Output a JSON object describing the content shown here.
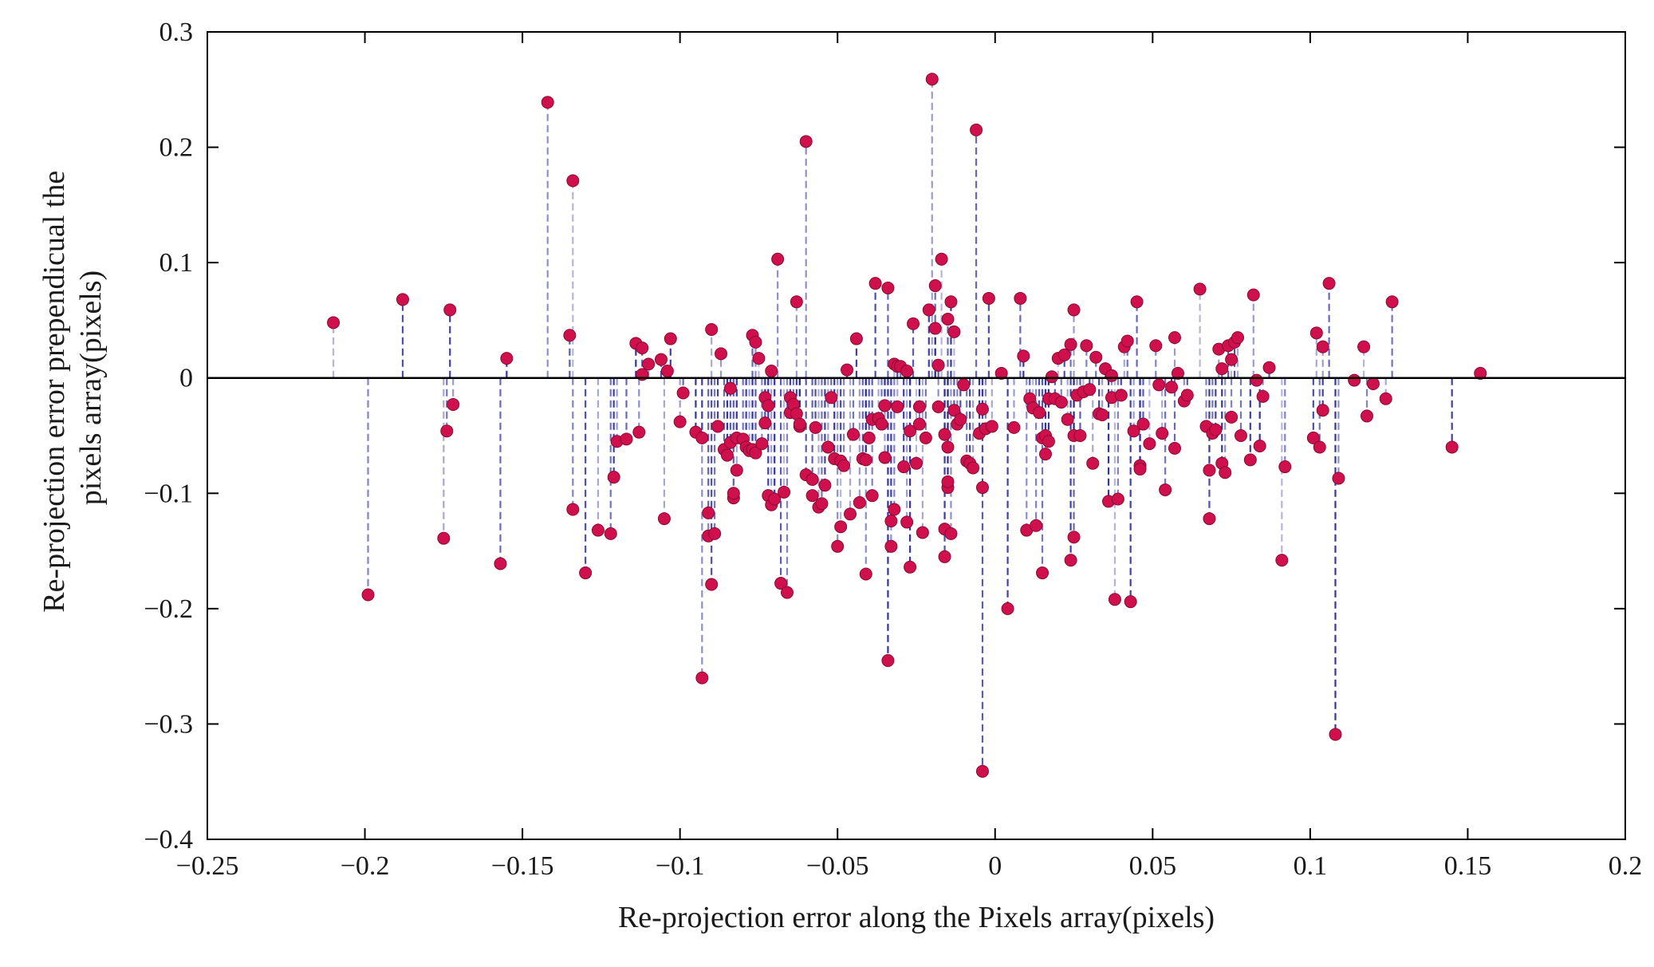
{
  "chart_data": {
    "type": "scatter",
    "style": "stem",
    "title": "",
    "xlabel": "Re-projection error along the Pixels array(pixels)",
    "ylabel": "Re-projection error prependicual the pixels array(pixels)",
    "ylabel_lines": [
      "Re-projection error prependicual the",
      "pixels array(pixels)"
    ],
    "xlim": [
      -0.25,
      0.2
    ],
    "ylim": [
      -0.4,
      0.3
    ],
    "xticks": [
      -0.25,
      -0.2,
      -0.15,
      -0.1,
      -0.05,
      0,
      0.05,
      0.1,
      0.15,
      0.2
    ],
    "yticks": [
      -0.4,
      -0.3,
      -0.2,
      -0.1,
      0,
      0.1,
      0.2,
      0.3
    ],
    "xtick_labels": [
      "−0.25",
      "−0.2",
      "−0.15",
      "−0.1",
      "−0.05",
      "0",
      "0.05",
      "0.1",
      "0.15",
      "0.2"
    ],
    "ytick_labels": [
      "−0.4",
      "−0.3",
      "−0.2",
      "−0.1",
      "0",
      "0.1",
      "0.2",
      "0.3"
    ],
    "grid": false,
    "baseline": 0,
    "colors": {
      "marker": "#d0104c",
      "stem": "#2a2a9a",
      "baseline": "#000000",
      "axis": "#000000"
    },
    "series": [
      {
        "name": "re-projection error",
        "points": [
          [
            -0.21,
            0.048
          ],
          [
            -0.199,
            -0.188
          ],
          [
            -0.188,
            0.068
          ],
          [
            -0.175,
            -0.139
          ],
          [
            -0.174,
            -0.046
          ],
          [
            -0.173,
            0.059
          ],
          [
            -0.172,
            -0.023
          ],
          [
            -0.157,
            -0.161
          ],
          [
            -0.155,
            0.017
          ],
          [
            -0.142,
            0.239
          ],
          [
            -0.135,
            0.037
          ],
          [
            -0.134,
            0.171
          ],
          [
            -0.134,
            -0.114
          ],
          [
            -0.13,
            -0.169
          ],
          [
            -0.126,
            -0.132
          ],
          [
            -0.122,
            -0.135
          ],
          [
            -0.121,
            -0.086
          ],
          [
            -0.12,
            -0.055
          ],
          [
            -0.117,
            -0.053
          ],
          [
            -0.114,
            0.03
          ],
          [
            -0.113,
            -0.047
          ],
          [
            -0.112,
            0.026
          ],
          [
            -0.112,
            0.003
          ],
          [
            -0.11,
            0.012
          ],
          [
            -0.106,
            0.016
          ],
          [
            -0.105,
            -0.122
          ],
          [
            -0.104,
            0.006
          ],
          [
            -0.103,
            0.034
          ],
          [
            -0.1,
            -0.038
          ],
          [
            -0.099,
            -0.013
          ],
          [
            -0.095,
            -0.047
          ],
          [
            -0.093,
            -0.26
          ],
          [
            -0.093,
            -0.052
          ],
          [
            -0.091,
            -0.117
          ],
          [
            -0.091,
            -0.137
          ],
          [
            -0.09,
            -0.179
          ],
          [
            -0.09,
            0.042
          ],
          [
            -0.089,
            -0.135
          ],
          [
            -0.088,
            -0.042
          ],
          [
            -0.087,
            0.021
          ],
          [
            -0.086,
            -0.062
          ],
          [
            -0.085,
            -0.067
          ],
          [
            -0.084,
            -0.009
          ],
          [
            -0.084,
            -0.056
          ],
          [
            -0.083,
            -0.104
          ],
          [
            -0.083,
            -0.1
          ],
          [
            -0.082,
            -0.052
          ],
          [
            -0.082,
            -0.08
          ],
          [
            -0.08,
            -0.053
          ],
          [
            -0.079,
            -0.06
          ],
          [
            -0.078,
            -0.063
          ],
          [
            -0.077,
            0.037
          ],
          [
            -0.077,
            -0.062
          ],
          [
            -0.076,
            0.031
          ],
          [
            -0.076,
            -0.065
          ],
          [
            -0.075,
            0.017
          ],
          [
            -0.074,
            -0.057
          ],
          [
            -0.073,
            -0.039
          ],
          [
            -0.073,
            -0.017
          ],
          [
            -0.072,
            -0.024
          ],
          [
            -0.072,
            -0.102
          ],
          [
            -0.071,
            -0.11
          ],
          [
            -0.071,
            0.006
          ],
          [
            -0.07,
            -0.105
          ],
          [
            -0.069,
            0.103
          ],
          [
            -0.068,
            -0.178
          ],
          [
            -0.067,
            -0.099
          ],
          [
            -0.066,
            -0.186
          ],
          [
            -0.065,
            -0.03
          ],
          [
            -0.065,
            -0.017
          ],
          [
            -0.064,
            -0.023
          ],
          [
            -0.063,
            -0.031
          ],
          [
            -0.063,
            0.066
          ],
          [
            -0.062,
            -0.042
          ],
          [
            -0.062,
            -0.04
          ],
          [
            -0.06,
            0.205
          ],
          [
            -0.06,
            -0.084
          ],
          [
            -0.058,
            -0.088
          ],
          [
            -0.058,
            -0.102
          ],
          [
            -0.057,
            -0.043
          ],
          [
            -0.056,
            -0.112
          ],
          [
            -0.055,
            -0.109
          ],
          [
            -0.054,
            -0.093
          ],
          [
            -0.053,
            -0.06
          ],
          [
            -0.052,
            -0.017
          ],
          [
            -0.051,
            -0.07
          ],
          [
            -0.05,
            -0.146
          ],
          [
            -0.049,
            -0.072
          ],
          [
            -0.049,
            -0.129
          ],
          [
            -0.048,
            -0.076
          ],
          [
            -0.047,
            0.007
          ],
          [
            -0.046,
            -0.118
          ],
          [
            -0.045,
            -0.049
          ],
          [
            -0.044,
            0.034
          ],
          [
            -0.043,
            -0.108
          ],
          [
            -0.042,
            -0.07
          ],
          [
            -0.041,
            -0.071
          ],
          [
            -0.041,
            -0.17
          ],
          [
            -0.04,
            -0.052
          ],
          [
            -0.039,
            -0.036
          ],
          [
            -0.039,
            -0.102
          ],
          [
            -0.038,
            0.082
          ],
          [
            -0.037,
            -0.035
          ],
          [
            -0.036,
            -0.04
          ],
          [
            -0.035,
            -0.024
          ],
          [
            -0.035,
            -0.069
          ],
          [
            -0.034,
            0.078
          ],
          [
            -0.034,
            -0.245
          ],
          [
            -0.033,
            -0.146
          ],
          [
            -0.033,
            -0.124
          ],
          [
            -0.032,
            0.012
          ],
          [
            -0.032,
            -0.114
          ],
          [
            -0.031,
            0.01
          ],
          [
            -0.031,
            -0.025
          ],
          [
            -0.03,
            0.01
          ],
          [
            -0.029,
            -0.077
          ],
          [
            -0.028,
            -0.125
          ],
          [
            -0.028,
            0.006
          ],
          [
            -0.027,
            -0.164
          ],
          [
            -0.027,
            -0.046
          ],
          [
            -0.026,
            0.047
          ],
          [
            -0.025,
            -0.074
          ],
          [
            -0.024,
            -0.04
          ],
          [
            -0.024,
            -0.025
          ],
          [
            -0.023,
            -0.134
          ],
          [
            -0.022,
            -0.052
          ],
          [
            -0.021,
            0.059
          ],
          [
            -0.02,
            0.259
          ],
          [
            -0.019,
            0.08
          ],
          [
            -0.019,
            0.043
          ],
          [
            -0.018,
            -0.025
          ],
          [
            -0.018,
            0.011
          ],
          [
            -0.017,
            0.103
          ],
          [
            -0.016,
            -0.049
          ],
          [
            -0.016,
            -0.155
          ],
          [
            -0.016,
            -0.131
          ],
          [
            -0.015,
            -0.095
          ],
          [
            -0.015,
            -0.09
          ],
          [
            -0.015,
            -0.06
          ],
          [
            -0.015,
            0.051
          ],
          [
            -0.014,
            0.066
          ],
          [
            -0.014,
            -0.135
          ],
          [
            -0.013,
            -0.028
          ],
          [
            -0.013,
            0.04
          ],
          [
            -0.012,
            -0.04
          ],
          [
            -0.011,
            -0.036
          ],
          [
            -0.01,
            -0.006
          ],
          [
            -0.009,
            -0.072
          ],
          [
            -0.008,
            -0.074
          ],
          [
            -0.007,
            -0.078
          ],
          [
            -0.006,
            0.215
          ],
          [
            -0.005,
            -0.048
          ],
          [
            -0.004,
            -0.027
          ],
          [
            -0.004,
            -0.341
          ],
          [
            -0.004,
            -0.095
          ],
          [
            -0.003,
            -0.044
          ],
          [
            -0.002,
            0.069
          ],
          [
            -0.001,
            -0.042
          ],
          [
            0.002,
            0.004
          ],
          [
            0.004,
            -0.2
          ],
          [
            0.006,
            -0.043
          ],
          [
            0.008,
            0.069
          ],
          [
            0.009,
            0.019
          ],
          [
            0.01,
            -0.132
          ],
          [
            0.011,
            -0.018
          ],
          [
            0.012,
            -0.026
          ],
          [
            0.013,
            -0.128
          ],
          [
            0.014,
            -0.03
          ],
          [
            0.015,
            -0.052
          ],
          [
            0.015,
            -0.169
          ],
          [
            0.016,
            -0.05
          ],
          [
            0.016,
            -0.066
          ],
          [
            0.017,
            -0.018
          ],
          [
            0.017,
            -0.055
          ],
          [
            0.018,
            0.001
          ],
          [
            0.019,
            -0.018
          ],
          [
            0.02,
            0.017
          ],
          [
            0.021,
            -0.021
          ],
          [
            0.022,
            0.02
          ],
          [
            0.023,
            -0.036
          ],
          [
            0.024,
            0.029
          ],
          [
            0.024,
            -0.158
          ],
          [
            0.025,
            0.059
          ],
          [
            0.025,
            -0.138
          ],
          [
            0.025,
            -0.05
          ],
          [
            0.026,
            -0.015
          ],
          [
            0.027,
            -0.05
          ],
          [
            0.028,
            -0.012
          ],
          [
            0.029,
            0.028
          ],
          [
            0.03,
            -0.01
          ],
          [
            0.031,
            -0.074
          ],
          [
            0.032,
            0.018
          ],
          [
            0.033,
            -0.031
          ],
          [
            0.034,
            -0.032
          ],
          [
            0.035,
            0.008
          ],
          [
            0.036,
            -0.107
          ],
          [
            0.037,
            -0.017
          ],
          [
            0.037,
            0.002
          ],
          [
            0.038,
            -0.192
          ],
          [
            0.039,
            -0.105
          ],
          [
            0.04,
            -0.015
          ],
          [
            0.041,
            0.027
          ],
          [
            0.042,
            0.032
          ],
          [
            0.043,
            -0.194
          ],
          [
            0.044,
            -0.046
          ],
          [
            0.045,
            0.066
          ],
          [
            0.046,
            -0.076
          ],
          [
            0.046,
            -0.079
          ],
          [
            0.047,
            -0.04
          ],
          [
            0.049,
            -0.057
          ],
          [
            0.051,
            0.028
          ],
          [
            0.052,
            -0.006
          ],
          [
            0.053,
            -0.048
          ],
          [
            0.054,
            -0.097
          ],
          [
            0.056,
            -0.008
          ],
          [
            0.057,
            0.035
          ],
          [
            0.057,
            -0.061
          ],
          [
            0.058,
            0.004
          ],
          [
            0.06,
            -0.02
          ],
          [
            0.061,
            -0.015
          ],
          [
            0.065,
            0.077
          ],
          [
            0.067,
            -0.042
          ],
          [
            0.068,
            -0.122
          ],
          [
            0.068,
            -0.08
          ],
          [
            0.069,
            -0.048
          ],
          [
            0.07,
            -0.045
          ],
          [
            0.071,
            0.025
          ],
          [
            0.072,
            0.008
          ],
          [
            0.072,
            -0.074
          ],
          [
            0.073,
            -0.082
          ],
          [
            0.074,
            0.028
          ],
          [
            0.075,
            0.016
          ],
          [
            0.075,
            -0.034
          ],
          [
            0.076,
            0.031
          ],
          [
            0.077,
            0.035
          ],
          [
            0.078,
            -0.05
          ],
          [
            0.081,
            -0.071
          ],
          [
            0.082,
            0.072
          ],
          [
            0.083,
            -0.002
          ],
          [
            0.084,
            -0.059
          ],
          [
            0.085,
            -0.016
          ],
          [
            0.087,
            0.009
          ],
          [
            0.091,
            -0.158
          ],
          [
            0.092,
            -0.077
          ],
          [
            0.101,
            -0.052
          ],
          [
            0.102,
            0.039
          ],
          [
            0.103,
            -0.06
          ],
          [
            0.104,
            -0.028
          ],
          [
            0.104,
            0.027
          ],
          [
            0.106,
            0.082
          ],
          [
            0.108,
            -0.309
          ],
          [
            0.109,
            -0.087
          ],
          [
            0.114,
            -0.002
          ],
          [
            0.117,
            0.027
          ],
          [
            0.118,
            -0.033
          ],
          [
            0.12,
            -0.005
          ],
          [
            0.124,
            -0.018
          ],
          [
            0.126,
            0.066
          ],
          [
            0.145,
            -0.06
          ],
          [
            0.154,
            0.004
          ]
        ]
      }
    ]
  }
}
